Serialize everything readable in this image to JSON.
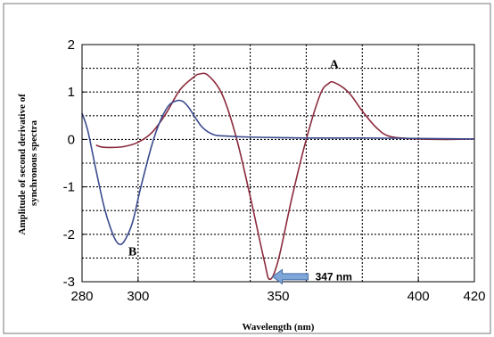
{
  "chart_data": {
    "type": "line",
    "title": "",
    "xlabel": "Wavelength (nm)",
    "ylabel_lines": [
      "Amplitude of second derivative of",
      "synchronous spectra"
    ],
    "xlim": [
      280,
      420
    ],
    "ylim": [
      -3,
      2
    ],
    "xticks": [
      280,
      300,
      350,
      400,
      420
    ],
    "yticks": [
      2,
      1,
      0,
      -1,
      -2,
      -3
    ],
    "grid_x": [
      300,
      320,
      340,
      360,
      380,
      400
    ],
    "grid_y": [
      1.5,
      1,
      0.5,
      0,
      -0.5,
      -1,
      -1.5,
      -2,
      -2.5
    ],
    "grid": true,
    "series": [
      {
        "name": "A",
        "color": "#8b2a3c",
        "label_pos": [
          370,
          1.5
        ],
        "x": [
          285,
          287,
          290,
          295,
          300,
          305,
          310,
          315,
          320,
          322,
          325,
          330,
          335,
          340,
          345,
          347,
          350,
          355,
          360,
          365,
          368,
          370,
          375,
          380,
          385,
          390,
          400,
          410,
          420
        ],
        "y": [
          -0.12,
          -0.16,
          -0.17,
          -0.15,
          -0.06,
          0.15,
          0.55,
          1.05,
          1.32,
          1.38,
          1.35,
          0.95,
          0.05,
          -1.2,
          -2.55,
          -2.95,
          -2.55,
          -1.2,
          0.0,
          0.95,
          1.18,
          1.2,
          1.0,
          0.6,
          0.25,
          0.06,
          0.01,
          0.0,
          0.01
        ]
      },
      {
        "name": "B",
        "color": "#3b4b8e",
        "label_pos": [
          298,
          -2.45
        ],
        "x": [
          280,
          282,
          285,
          288,
          291,
          293,
          295,
          298,
          301,
          305,
          308,
          311,
          314,
          316,
          318,
          320,
          323,
          327,
          332,
          340,
          350,
          360,
          380,
          400,
          420
        ],
        "y": [
          0.55,
          0.2,
          -0.65,
          -1.45,
          -2.0,
          -2.2,
          -2.15,
          -1.75,
          -1.0,
          -0.1,
          0.4,
          0.72,
          0.82,
          0.8,
          0.68,
          0.5,
          0.25,
          0.1,
          0.07,
          0.05,
          0.04,
          0.03,
          0.03,
          0.02,
          0.01
        ]
      }
    ],
    "annotations": [
      {
        "text": "347 nm",
        "arrow_to": [
          347,
          -2.95
        ]
      }
    ]
  }
}
